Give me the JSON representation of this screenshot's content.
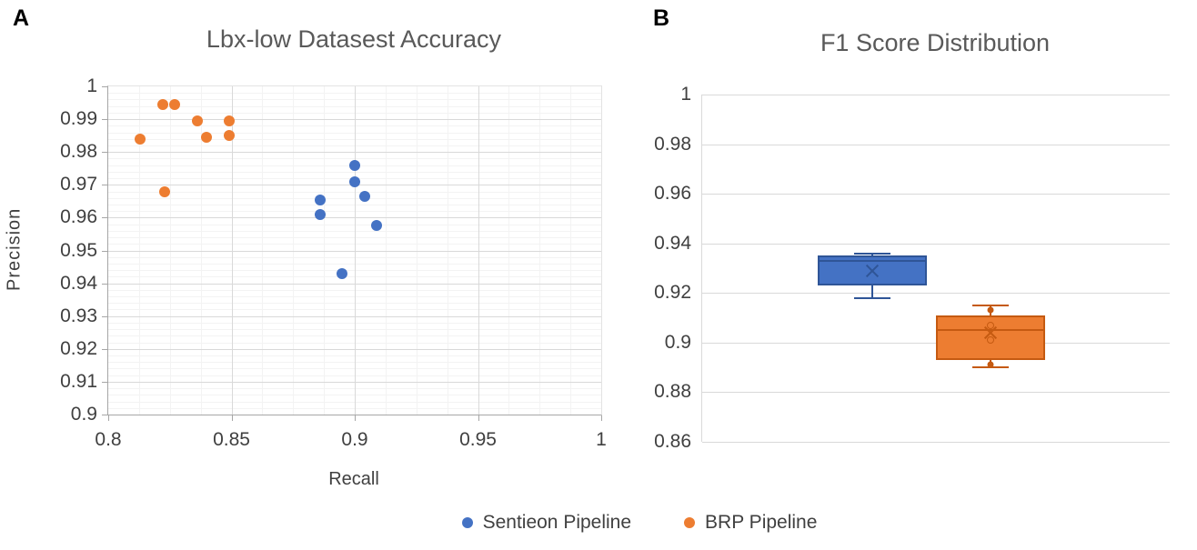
{
  "figure": {
    "panel_a_letter": "A",
    "panel_b_letter": "B"
  },
  "colors": {
    "blue_fill": "#4472C4",
    "blue_border": "#2F5597",
    "orange_fill": "#ED7D31",
    "orange_border": "#C55A11",
    "title_text": "#595959",
    "axis_text": "#404040",
    "gridline_major": "#d9d9d9",
    "gridline_minor": "#f3f3f3"
  },
  "legend": {
    "items": [
      {
        "label": "Sentieon Pipeline",
        "color": "#4472C4"
      },
      {
        "label": "BRP Pipeline",
        "color": "#ED7D31"
      }
    ]
  },
  "chart_data": [
    {
      "type": "scatter",
      "panel": "A",
      "title": "Lbx-low Datasest Accuracy",
      "xlabel": "Recall",
      "ylabel": "Precision",
      "xlim": [
        0.8,
        1.0
      ],
      "ylim": [
        0.9,
        1.0
      ],
      "grid": true,
      "x_ticks": [
        {
          "v": 0.8,
          "label": "0.8"
        },
        {
          "v": 0.85,
          "label": "0.85"
        },
        {
          "v": 0.9,
          "label": "0.9"
        },
        {
          "v": 0.95,
          "label": "0.95"
        },
        {
          "v": 1.0,
          "label": "1"
        }
      ],
      "y_ticks": [
        {
          "v": 1.0,
          "label": "1"
        },
        {
          "v": 0.99,
          "label": "0.99"
        },
        {
          "v": 0.98,
          "label": "0.98"
        },
        {
          "v": 0.97,
          "label": "0.97"
        },
        {
          "v": 0.96,
          "label": "0.96"
        },
        {
          "v": 0.95,
          "label": "0.95"
        },
        {
          "v": 0.94,
          "label": "0.94"
        },
        {
          "v": 0.93,
          "label": "0.93"
        },
        {
          "v": 0.92,
          "label": "0.92"
        },
        {
          "v": 0.91,
          "label": "0.91"
        },
        {
          "v": 0.9,
          "label": "0.9"
        }
      ],
      "x_minor_step": 0.0125,
      "y_minor_step": 0.002,
      "series": [
        {
          "name": "Sentieon Pipeline",
          "color": "#4472C4",
          "points": [
            [
              0.9,
              0.976
            ],
            [
              0.9,
              0.971
            ],
            [
              0.904,
              0.9665
            ],
            [
              0.886,
              0.9655
            ],
            [
              0.886,
              0.961
            ],
            [
              0.909,
              0.9575
            ],
            [
              0.895,
              0.943
            ]
          ]
        },
        {
          "name": "BRP Pipeline",
          "color": "#ED7D31",
          "points": [
            [
              0.813,
              0.984
            ],
            [
              0.822,
              0.9945
            ],
            [
              0.827,
              0.9945
            ],
            [
              0.836,
              0.9895
            ],
            [
              0.84,
              0.9845
            ],
            [
              0.849,
              0.9895
            ],
            [
              0.849,
              0.985
            ],
            [
              0.823,
              0.968
            ]
          ]
        }
      ],
      "legend_position": "bottom"
    },
    {
      "type": "box",
      "panel": "B",
      "title": "F1 Score Distribution",
      "ylim": [
        0.86,
        1.0
      ],
      "grid": true,
      "y_ticks": [
        {
          "v": 1.0,
          "label": "1"
        },
        {
          "v": 0.98,
          "label": "0.98"
        },
        {
          "v": 0.96,
          "label": "0.96"
        },
        {
          "v": 0.94,
          "label": "0.94"
        },
        {
          "v": 0.92,
          "label": "0.92"
        },
        {
          "v": 0.9,
          "label": "0.9"
        },
        {
          "v": 0.88,
          "label": "0.88"
        },
        {
          "v": 0.86,
          "label": "0.86"
        }
      ],
      "boxes": [
        {
          "name": "Sentieon Pipeline",
          "fill": "#4472C4",
          "border": "#2F5597",
          "center_frac": 0.364,
          "whisker_low": 0.918,
          "q1": 0.923,
          "median": 0.933,
          "q3": 0.935,
          "whisker_high": 0.936,
          "mean": 0.929,
          "markers": []
        },
        {
          "name": "BRP Pipeline",
          "fill": "#ED7D31",
          "border": "#C55A11",
          "center_frac": 0.617,
          "whisker_low": 0.89,
          "q1": 0.893,
          "median": 0.905,
          "q3": 0.911,
          "whisker_high": 0.915,
          "mean": 0.904,
          "markers": [
            {
              "v": 0.913,
              "style": "dot"
            },
            {
              "v": 0.907,
              "style": "circle"
            },
            {
              "v": 0.901,
              "style": "circle"
            },
            {
              "v": 0.891,
              "style": "dot"
            }
          ]
        }
      ]
    }
  ]
}
